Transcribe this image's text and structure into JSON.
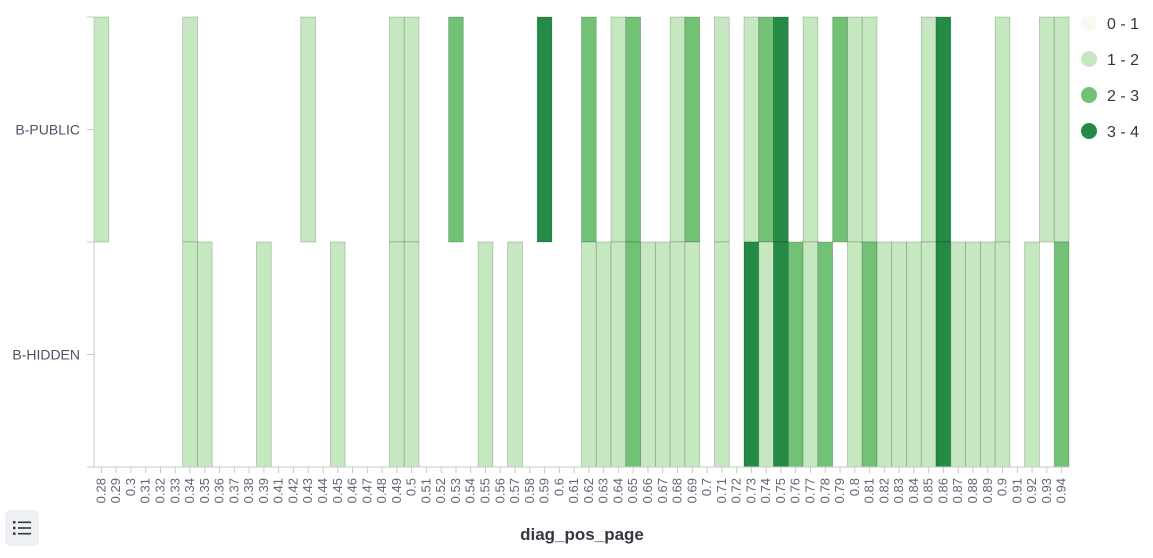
{
  "chart_data": {
    "type": "heatmap",
    "xlabel": "diag_pos_page",
    "ylabel": "",
    "x_categories": [
      "0.28",
      "0.29",
      "0.3",
      "0.31",
      "0.32",
      "0.33",
      "0.34",
      "0.35",
      "0.36",
      "0.37",
      "0.38",
      "0.39",
      "0.41",
      "0.42",
      "0.43",
      "0.44",
      "0.45",
      "0.46",
      "0.47",
      "0.48",
      "0.49",
      "0.5",
      "0.51",
      "0.52",
      "0.53",
      "0.54",
      "0.55",
      "0.56",
      "0.57",
      "0.58",
      "0.59",
      "0.6",
      "0.61",
      "0.62",
      "0.63",
      "0.64",
      "0.65",
      "0.66",
      "0.67",
      "0.68",
      "0.69",
      "0.7",
      "0.71",
      "0.72",
      "0.73",
      "0.74",
      "0.75",
      "0.76",
      "0.77",
      "0.78",
      "0.79",
      "0.8",
      "0.81",
      "0.82",
      "0.83",
      "0.84",
      "0.85",
      "0.86",
      "0.87",
      "0.88",
      "0.89",
      "0.9",
      "0.91",
      "0.92",
      "0.93",
      "0.94"
    ],
    "y_categories": [
      "B-PUBLIC",
      "B-HIDDEN"
    ],
    "series": [
      {
        "name": "B-PUBLIC",
        "values": [
          1,
          0,
          0,
          0,
          0,
          0,
          1,
          0,
          0,
          0,
          0,
          0,
          0,
          0,
          1,
          0,
          0,
          0,
          0,
          0,
          1,
          1,
          0,
          0,
          2,
          0,
          0,
          0,
          0,
          0,
          3,
          0,
          0,
          2,
          0,
          1,
          2,
          0,
          0,
          1,
          2,
          0,
          1,
          0,
          1,
          2,
          3,
          0,
          1,
          0,
          2,
          1,
          1,
          0,
          0,
          0,
          1,
          3,
          0,
          0,
          0,
          1,
          0,
          0,
          1,
          1
        ]
      },
      {
        "name": "B-HIDDEN",
        "values": [
          0,
          0,
          0,
          0,
          0,
          0,
          1,
          1,
          0,
          0,
          0,
          1,
          0,
          0,
          0,
          0,
          1,
          0,
          0,
          0,
          1,
          1,
          0,
          0,
          0,
          0,
          1,
          0,
          1,
          0,
          0,
          0,
          0,
          1,
          1,
          1,
          2,
          1,
          1,
          1,
          1,
          0,
          1,
          0,
          3,
          1,
          3,
          2,
          1,
          2,
          0,
          1,
          2,
          1,
          1,
          1,
          1,
          3,
          1,
          1,
          1,
          1,
          0,
          1,
          0,
          2
        ]
      }
    ],
    "legend": {
      "position": "top-right",
      "items": [
        {
          "label": "0 - 1",
          "color": "#f5fbf3"
        },
        {
          "label": "1 - 2",
          "color": "#c6e8c1"
        },
        {
          "label": "2 - 3",
          "color": "#71c274"
        },
        {
          "label": "3 - 4",
          "color": "#238b45"
        }
      ]
    },
    "grid": false
  },
  "colors": {
    "band_0": "#ffffff",
    "band_1": "#c6e8c1",
    "band_2": "#71c274",
    "band_3": "#238b45",
    "axis": "#c8c8c8"
  },
  "controls": {
    "legend_toggle_icon": "list-icon"
  }
}
